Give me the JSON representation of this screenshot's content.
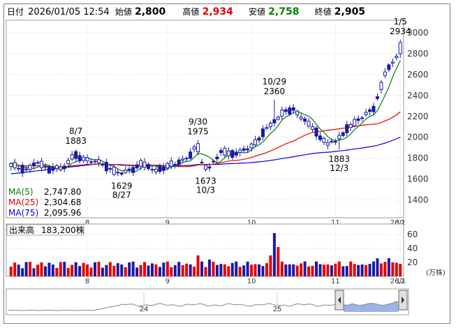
{
  "header": {
    "date_label": "日付",
    "date_value": "2026/01/05 12:54",
    "open_label": "始値",
    "open_value": "2,800",
    "high_label": "高値",
    "high_value": "2,934",
    "low_label": "安値",
    "low_value": "2,758",
    "close_label": "終値",
    "close_value": "2,905",
    "colors": {
      "high": "#e60000",
      "low": "#008000",
      "default": "#000000"
    }
  },
  "chart_data": [
    {
      "type": "candlestick",
      "ylim": [
        1230,
        3120
      ],
      "yticks": [
        "1400",
        "1600",
        "1800",
        "2000",
        "2200",
        "2400",
        "2600",
        "2800",
        "3000"
      ],
      "xticks": [
        "8",
        "9",
        "10",
        "11",
        "12",
        "26/1"
      ],
      "annotations": [
        {
          "date": "8/7",
          "value": "1883",
          "kind": "high"
        },
        {
          "date": "8/27",
          "value": "1629",
          "kind": "low"
        },
        {
          "date": "9/30",
          "value": "1975",
          "kind": "high"
        },
        {
          "date": "10/3",
          "value": "1673",
          "kind": "low"
        },
        {
          "date": "10/29",
          "value": "2360",
          "kind": "high"
        },
        {
          "date": "12/3",
          "value": "1883",
          "kind": "low"
        },
        {
          "date": "1/5",
          "value": "2934",
          "kind": "high"
        }
      ],
      "legend": [
        {
          "name": "MA(5)",
          "value": "2,747.80",
          "color": "#008000"
        },
        {
          "name": "MA(25)",
          "value": "2,304.68",
          "color": "#e60000"
        },
        {
          "name": "MA(75)",
          "value": "2,095.96",
          "color": "#0000e6"
        }
      ],
      "colors": {
        "up": "#ffffff",
        "down": "#1a1aa6",
        "ma5": "#008000",
        "ma25": "#e60000",
        "ma75": "#0000e6"
      }
    },
    {
      "type": "bar",
      "label": "出来高",
      "value_text": "183,200株",
      "unit": "(万株)",
      "ylim": [
        0,
        75
      ],
      "yticks": [
        "20",
        "40",
        "60"
      ],
      "xticks": [
        "8",
        "9",
        "10",
        "11",
        "12",
        "26/1"
      ],
      "colors": {
        "up": "#e60000",
        "down": "#1a1aa6"
      }
    },
    {
      "type": "area",
      "label": "overview",
      "xticks": [
        "24",
        "25"
      ],
      "colors": {
        "line": "#888888",
        "fill": "#9bb3e6"
      }
    }
  ]
}
